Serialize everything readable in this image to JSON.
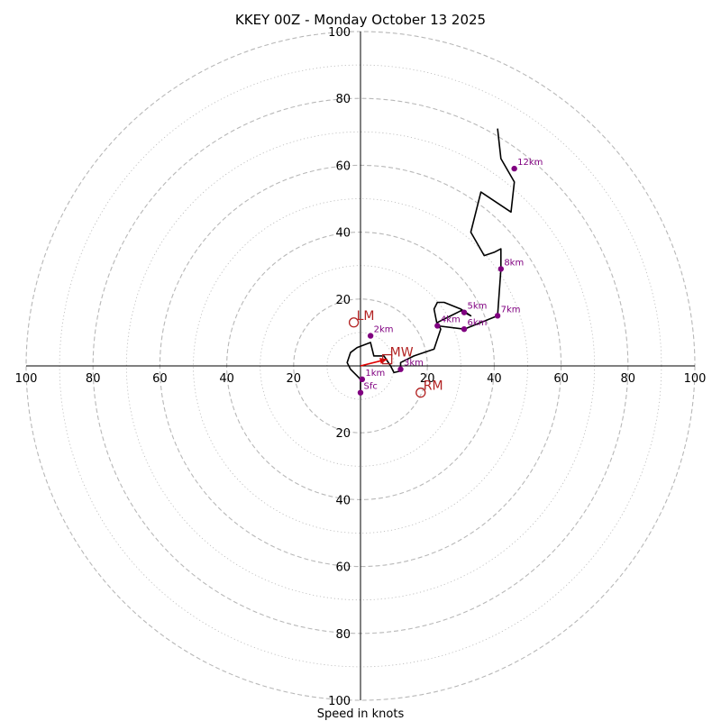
{
  "chart_data": {
    "type": "hodograph",
    "title": "KKEY 00Z - Monday October 13 2025",
    "xlabel": "Speed in knots",
    "units": "knots",
    "range": 100,
    "rings_major": [
      20,
      40,
      60,
      80,
      100
    ],
    "rings_minor": [
      10,
      30,
      50,
      70,
      90
    ],
    "tick_values": [
      20,
      40,
      60,
      80,
      100
    ],
    "tick_labels": [
      "20",
      "40",
      "60",
      "80",
      "100"
    ],
    "trace": [
      [
        0,
        -8
      ],
      [
        0,
        -6
      ],
      [
        0,
        -4
      ],
      [
        -3,
        -1
      ],
      [
        -4,
        1
      ],
      [
        -3,
        4
      ],
      [
        -1,
        5.5
      ],
      [
        3,
        7
      ],
      [
        4,
        3
      ],
      [
        7,
        3
      ],
      [
        9,
        0
      ],
      [
        10,
        -2
      ],
      [
        12,
        -1.5
      ],
      [
        12,
        1
      ],
      [
        16,
        3
      ],
      [
        22,
        5
      ],
      [
        23,
        8
      ],
      [
        24,
        11
      ],
      [
        23,
        13
      ],
      [
        27,
        15
      ],
      [
        30,
        16.5
      ],
      [
        33,
        15
      ],
      [
        30,
        17
      ],
      [
        25,
        19
      ],
      [
        23,
        19
      ],
      [
        22,
        17
      ],
      [
        23,
        12
      ],
      [
        31,
        11
      ],
      [
        41,
        15
      ],
      [
        42,
        29
      ],
      [
        42,
        35
      ],
      [
        40,
        34
      ],
      [
        37,
        33
      ],
      [
        33,
        40
      ],
      [
        36,
        52
      ],
      [
        45,
        46
      ],
      [
        46,
        55
      ],
      [
        42,
        62
      ],
      [
        41,
        71
      ]
    ],
    "height_markers": [
      {
        "label": "Sfc",
        "u": 0,
        "v": -8
      },
      {
        "label": "1km",
        "u": 0.5,
        "v": -4
      },
      {
        "label": "2km",
        "u": 3,
        "v": 9
      },
      {
        "label": "3km",
        "u": 12,
        "v": -1
      },
      {
        "label": "4km",
        "u": 23,
        "v": 12
      },
      {
        "label": "5km",
        "u": 31,
        "v": 16
      },
      {
        "label": "6km",
        "u": 31,
        "v": 11
      },
      {
        "label": "7km",
        "u": 41,
        "v": 15
      },
      {
        "label": "8km",
        "u": 42,
        "v": 29
      },
      {
        "label": "12km",
        "u": 46,
        "v": 59
      }
    ],
    "motion_markers": [
      {
        "label": "LM",
        "u": -2,
        "v": 13,
        "shape": "circle"
      },
      {
        "label": "RM",
        "u": 18,
        "v": -8,
        "shape": "circle"
      },
      {
        "label": "MW",
        "u": 8,
        "v": 2,
        "shape": "square"
      }
    ],
    "shear_vector": {
      "from": [
        0,
        0
      ],
      "to": [
        8,
        2
      ]
    },
    "colors": {
      "trace": "#000000",
      "height_marker": "#800080",
      "motion": "#b22222",
      "shear_vector": "#e00000",
      "grid": "#b8b8b8"
    }
  }
}
